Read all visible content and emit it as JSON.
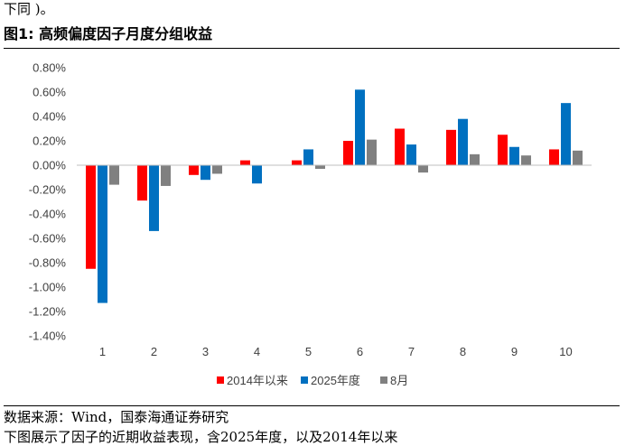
{
  "top_text": "下同 )。",
  "figure_title": "图1:  高频偏度因子月度分组收益",
  "source": "数据来源：Wind，国泰海通证券研究",
  "bottom_text": "下图展示了因子的近期收益表现，含2025年度，以及2014年以来",
  "chart_data": {
    "type": "bar",
    "title": "",
    "xlabel": "",
    "ylabel": "",
    "ylim": [
      -0.014,
      0.008
    ],
    "yticks": [
      0.008,
      0.006,
      0.004,
      0.002,
      0.0,
      -0.002,
      -0.004,
      -0.006,
      -0.008,
      -0.01,
      -0.012,
      -0.014
    ],
    "ytick_labels": [
      "0.80%",
      "0.60%",
      "0.40%",
      "0.20%",
      "0.00%",
      "-0.20%",
      "-0.40%",
      "-0.60%",
      "-0.80%",
      "-1.00%",
      "-1.20%",
      "-1.40%"
    ],
    "categories": [
      "1",
      "2",
      "3",
      "4",
      "5",
      "6",
      "7",
      "8",
      "9",
      "10"
    ],
    "grid": false,
    "legend_position": "bottom",
    "series": [
      {
        "name": "2014年以来",
        "color": "#ff0000",
        "values": [
          -0.0085,
          -0.0029,
          -0.0008,
          0.0004,
          0.0004,
          0.002,
          0.003,
          0.0029,
          0.0025,
          0.0013
        ]
      },
      {
        "name": "2025年度",
        "color": "#0070c0",
        "values": [
          -0.0113,
          -0.0054,
          -0.0012,
          -0.0015,
          0.0013,
          0.0062,
          0.0017,
          0.0038,
          0.0015,
          0.0051
        ]
      },
      {
        "name": "8月",
        "color": "#808080",
        "values": [
          -0.0016,
          -0.0017,
          -0.0007,
          0.0,
          -0.0003,
          0.0021,
          -0.0006,
          0.0009,
          0.0008,
          0.0012
        ]
      }
    ]
  }
}
